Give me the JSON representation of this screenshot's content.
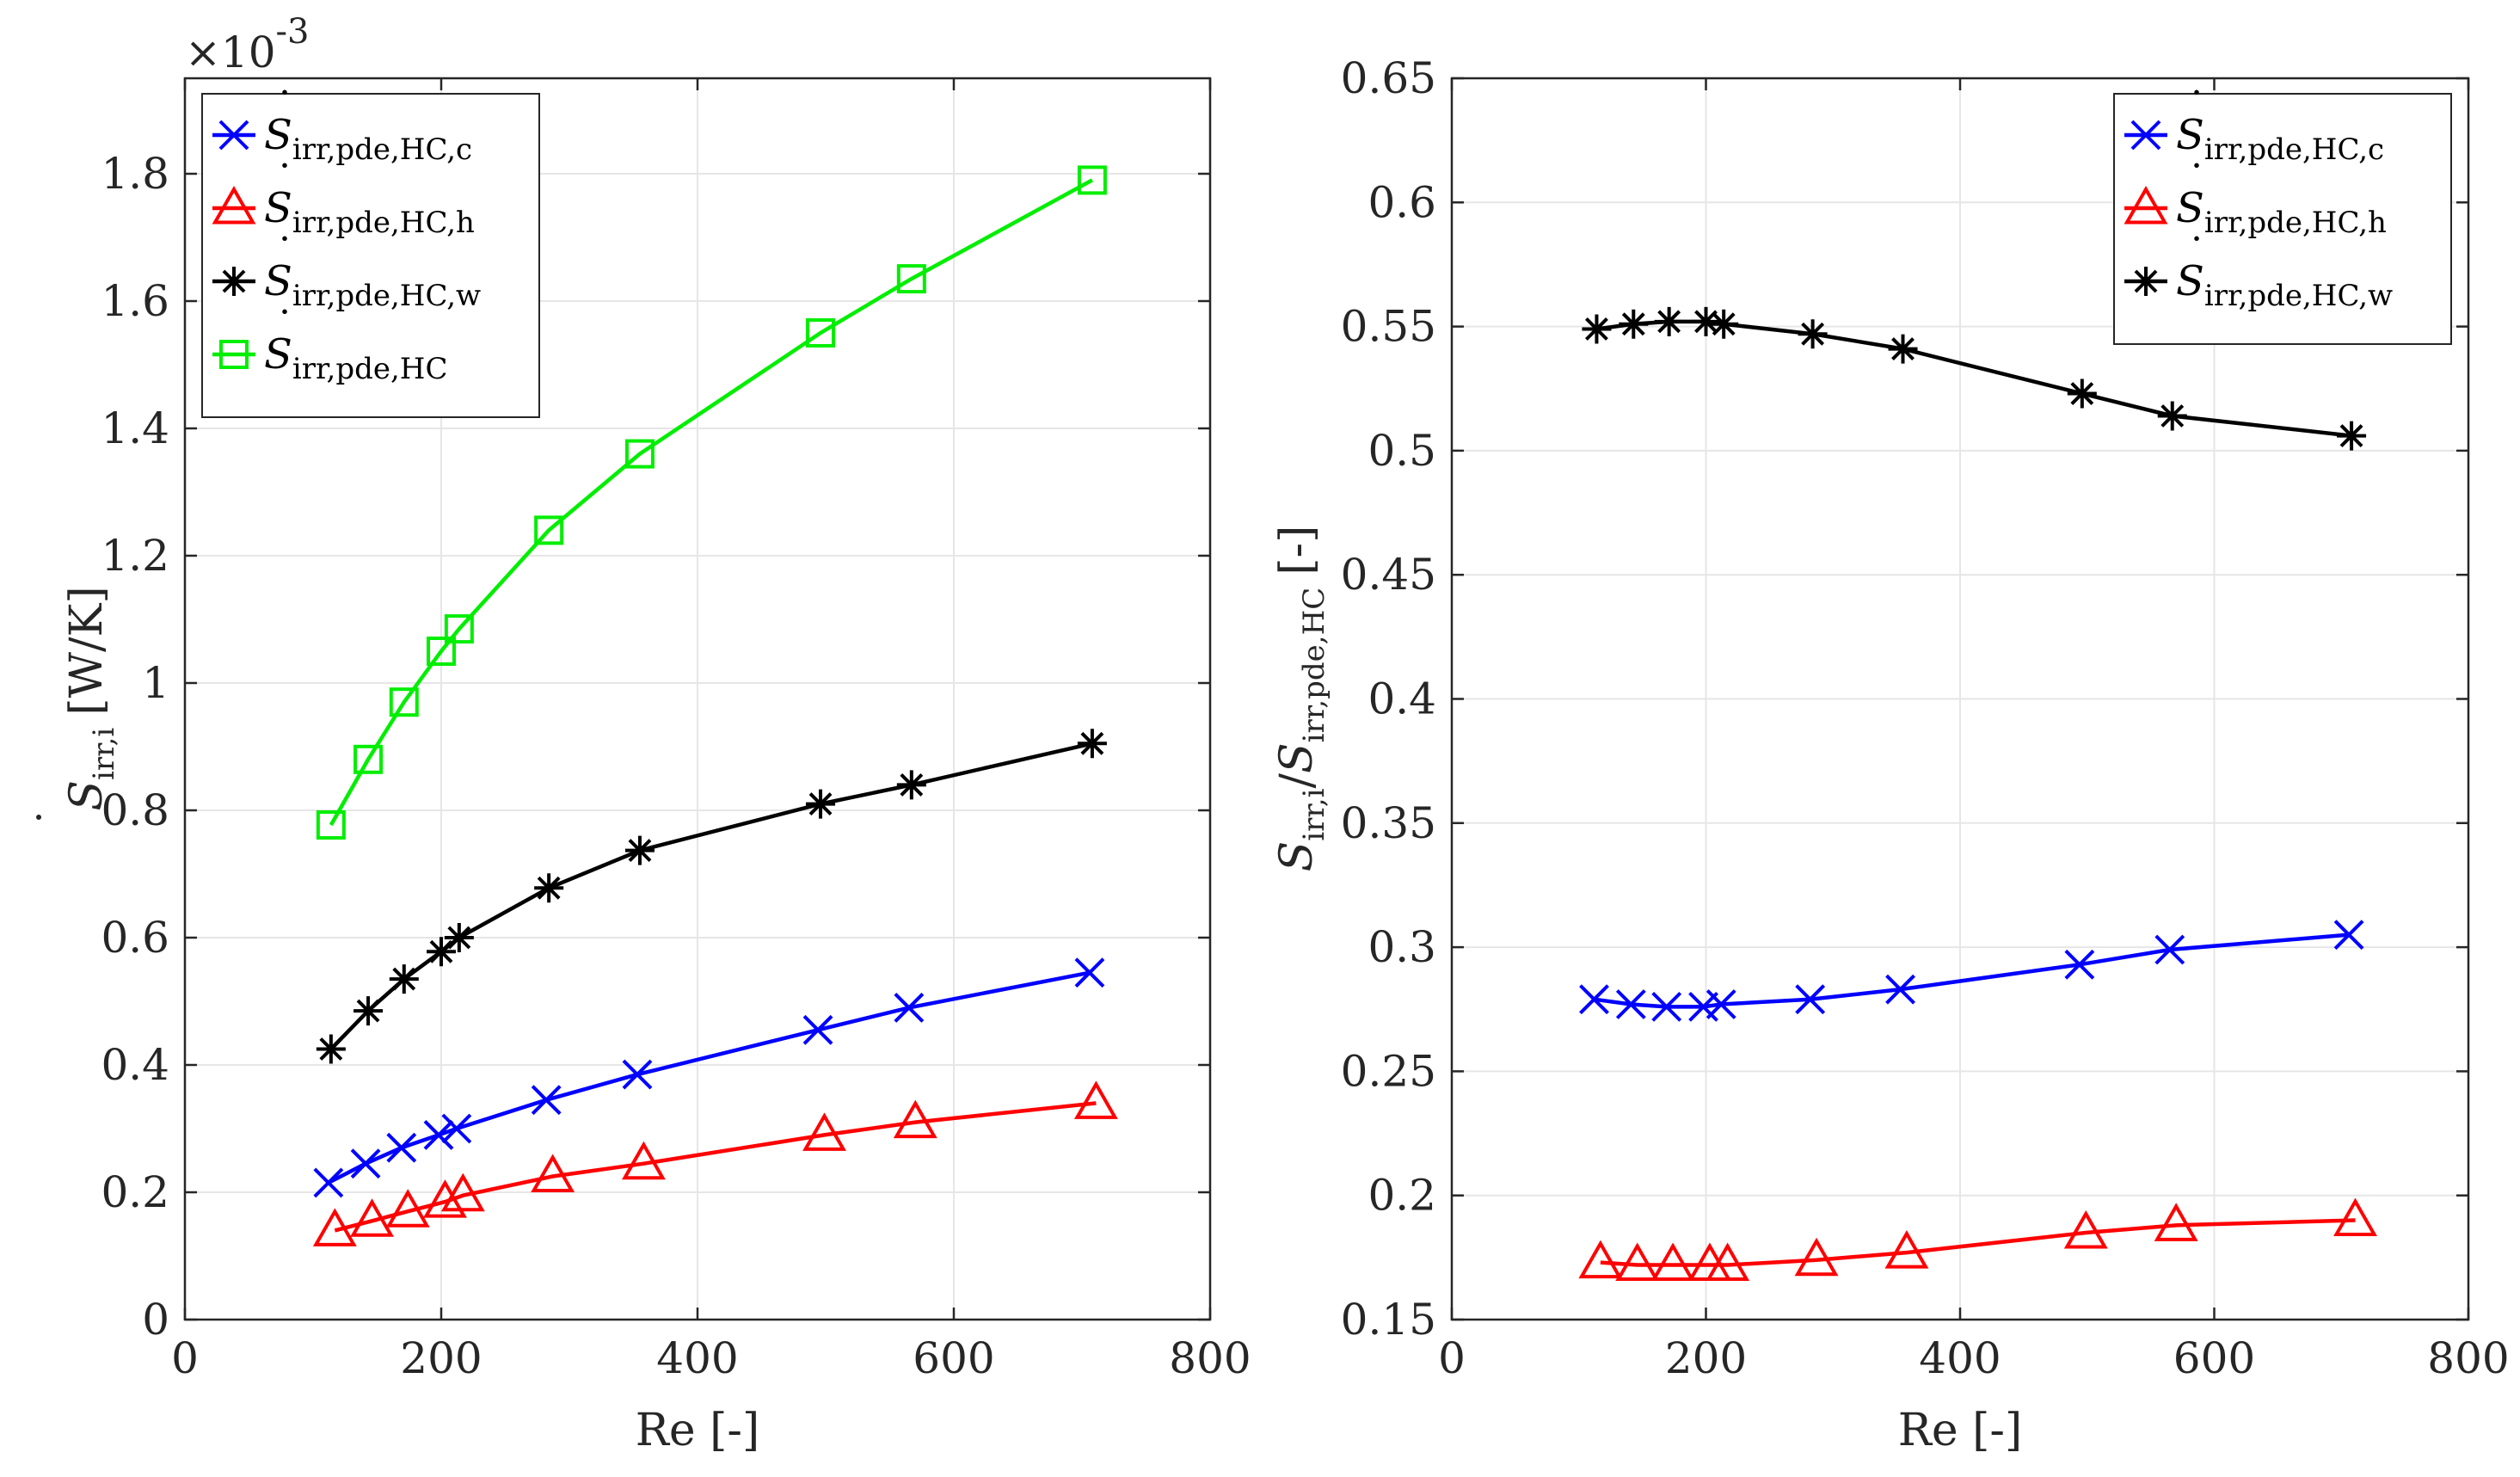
{
  "figure": {
    "exponent_label": "×10",
    "exponent_power": "-3"
  },
  "chart_data": [
    {
      "type": "line",
      "title": "",
      "xlabel": "Re [-]",
      "ylabel_main": "S",
      "ylabel_sub": "irr,i",
      "ylabel_unit": "[W/K]",
      "xlim": [
        0,
        800
      ],
      "ylim": [
        0,
        1.95
      ],
      "xticks": [
        0,
        200,
        400,
        600,
        800
      ],
      "xtick_labels": [
        "0",
        "200",
        "400",
        "600",
        "800"
      ],
      "yticks": [
        0,
        0.2,
        0.4,
        0.6,
        0.8,
        1.0,
        1.2,
        1.4,
        1.6,
        1.8
      ],
      "ytick_labels": [
        "0",
        "0.2",
        "0.4",
        "0.6",
        "0.8",
        "1",
        "1.2",
        "1.4",
        "1.6",
        "1.8"
      ],
      "y_scale_note": "×10^-3",
      "legend_position": "top-left",
      "grid": true,
      "series": [
        {
          "name": "S_irr,pde,HC,c",
          "label_main": "S",
          "label_sub": "irr,pde,HC,c",
          "color": "#0000ff",
          "marker": "x",
          "x": [
            112,
            141,
            169,
            198,
            212,
            282,
            353,
            494,
            565,
            706
          ],
          "values": [
            0.215,
            0.245,
            0.27,
            0.29,
            0.3,
            0.345,
            0.385,
            0.455,
            0.49,
            0.545
          ]
        },
        {
          "name": "S_irr,pde,HC,h",
          "label_main": "S",
          "label_sub": "irr,pde,HC,h",
          "color": "#ff0000",
          "marker": "triangle",
          "x": [
            117,
            146,
            174,
            203,
            217,
            287,
            358,
            499,
            570,
            711
          ],
          "values": [
            0.14,
            0.155,
            0.17,
            0.185,
            0.195,
            0.225,
            0.245,
            0.29,
            0.31,
            0.34
          ]
        },
        {
          "name": "S_irr,pde,HC,w",
          "label_main": "S",
          "label_sub": "irr,pde,HC,w",
          "color": "#000000",
          "marker": "star",
          "x": [
            114,
            143,
            171,
            200,
            214,
            284,
            355,
            496,
            567,
            708
          ],
          "values": [
            0.425,
            0.485,
            0.535,
            0.578,
            0.6,
            0.678,
            0.737,
            0.81,
            0.84,
            0.905
          ]
        },
        {
          "name": "S_irr,pde,HC",
          "label_main": "S",
          "label_sub": "irr,pde,HC",
          "color": "#00ee00",
          "marker": "square",
          "x": [
            114,
            143,
            171,
            200,
            214,
            284,
            355,
            496,
            567,
            708
          ],
          "values": [
            0.777,
            0.88,
            0.97,
            1.05,
            1.085,
            1.24,
            1.36,
            1.55,
            1.635,
            1.79
          ]
        }
      ]
    },
    {
      "type": "line",
      "title": "",
      "xlabel": "Re [-]",
      "ylabel_main": "S",
      "ylabel_sub": "irr,i",
      "ylabel_mid": "/",
      "ylabel_main2": "S",
      "ylabel_sub2": "irr,pde,HC",
      "ylabel_unit": "[-]",
      "xlim": [
        0,
        800
      ],
      "ylim": [
        0.15,
        0.65
      ],
      "xticks": [
        0,
        200,
        400,
        600,
        800
      ],
      "xtick_labels": [
        "0",
        "200",
        "400",
        "600",
        "800"
      ],
      "yticks": [
        0.15,
        0.2,
        0.25,
        0.3,
        0.35,
        0.4,
        0.45,
        0.5,
        0.55,
        0.6,
        0.65
      ],
      "ytick_labels": [
        "0.15",
        "0.2",
        "0.25",
        "0.3",
        "0.35",
        "0.4",
        "0.45",
        "0.5",
        "0.55",
        "0.6",
        "0.65"
      ],
      "legend_position": "top-right",
      "grid": true,
      "series": [
        {
          "name": "S_irr,pde,HC,c",
          "label_main": "S",
          "label_sub": "irr,pde,HC,c",
          "color": "#0000ff",
          "marker": "x",
          "x": [
            112,
            141,
            169,
            198,
            212,
            282,
            353,
            494,
            565,
            706
          ],
          "values": [
            0.279,
            0.277,
            0.276,
            0.276,
            0.277,
            0.279,
            0.283,
            0.293,
            0.299,
            0.305
          ]
        },
        {
          "name": "S_irr,pde,HC,h",
          "label_main": "S",
          "label_sub": "irr,pde,HC,h",
          "color": "#ff0000",
          "marker": "triangle",
          "x": [
            117,
            146,
            174,
            203,
            217,
            287,
            358,
            499,
            570,
            711
          ],
          "values": [
            0.173,
            0.172,
            0.172,
            0.172,
            0.172,
            0.174,
            0.177,
            0.185,
            0.188,
            0.19
          ]
        },
        {
          "name": "S_irr,pde,HC,w",
          "label_main": "S",
          "label_sub": "irr,pde,HC,w",
          "color": "#000000",
          "marker": "star",
          "x": [
            114,
            143,
            171,
            200,
            214,
            284,
            355,
            496,
            567,
            708
          ],
          "values": [
            0.549,
            0.551,
            0.552,
            0.552,
            0.551,
            0.547,
            0.541,
            0.523,
            0.514,
            0.506
          ]
        }
      ]
    }
  ]
}
